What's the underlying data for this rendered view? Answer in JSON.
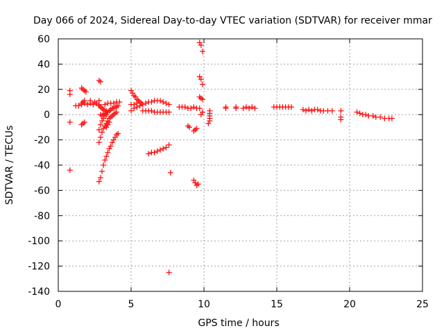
{
  "chart_data": {
    "type": "scatter",
    "title": "Day 066 of 2024, Sidereal Day-to-day VTEC variation (SDTVAR) for receiver mmar",
    "xlabel": "GPS time / hours",
    "ylabel": "SDTVAR / TECUs",
    "xlim": [
      0,
      25
    ],
    "ylim": [
      -140,
      60
    ],
    "xticks": [
      "0",
      "5",
      "10",
      "15",
      "20",
      "25"
    ],
    "xtick_values": [
      0,
      5,
      10,
      15,
      20,
      25
    ],
    "yticks": [
      "60",
      "40",
      "20",
      "0",
      "-20",
      "-40",
      "-60",
      "-80",
      "-100",
      "-120",
      "-140"
    ],
    "ytick_values": [
      60,
      40,
      20,
      0,
      -20,
      -40,
      -60,
      -80,
      -100,
      -120,
      -140
    ],
    "grid": true,
    "marker": "+",
    "color": "#ff0000",
    "series": [
      {
        "name": "SDTVAR",
        "points": [
          [
            0.8,
            19
          ],
          [
            0.8,
            16
          ],
          [
            0.8,
            -6
          ],
          [
            0.8,
            -44
          ],
          [
            1.2,
            7
          ],
          [
            1.4,
            7
          ],
          [
            1.6,
            8
          ],
          [
            1.8,
            9
          ],
          [
            2.0,
            8
          ],
          [
            2.2,
            9
          ],
          [
            2.4,
            8
          ],
          [
            2.6,
            9
          ],
          [
            2.8,
            8
          ],
          [
            1.6,
            21
          ],
          [
            1.7,
            20
          ],
          [
            1.8,
            19
          ],
          [
            1.9,
            18
          ],
          [
            1.6,
            9
          ],
          [
            1.7,
            10
          ],
          [
            1.8,
            11
          ],
          [
            1.6,
            -8
          ],
          [
            1.7,
            -7
          ],
          [
            1.8,
            -6
          ],
          [
            2.2,
            11
          ],
          [
            2.5,
            10
          ],
          [
            2.8,
            11
          ],
          [
            2.8,
            27
          ],
          [
            2.9,
            26
          ],
          [
            2.8,
            -53
          ],
          [
            2.9,
            -50
          ],
          [
            3.0,
            -45
          ],
          [
            3.1,
            -40
          ],
          [
            3.2,
            -36
          ],
          [
            3.3,
            -33
          ],
          [
            3.4,
            -30
          ],
          [
            3.5,
            -27
          ],
          [
            3.6,
            -25
          ],
          [
            3.7,
            -22
          ],
          [
            3.8,
            -20
          ],
          [
            3.9,
            -18
          ],
          [
            4.0,
            -16
          ],
          [
            4.1,
            -15
          ],
          [
            2.8,
            -22
          ],
          [
            2.9,
            -18
          ],
          [
            3.0,
            -14
          ],
          [
            3.1,
            -11
          ],
          [
            3.2,
            -9
          ],
          [
            3.3,
            -7
          ],
          [
            3.4,
            -5
          ],
          [
            3.5,
            -3
          ],
          [
            3.6,
            -2
          ],
          [
            3.7,
            -1
          ],
          [
            3.8,
            0
          ],
          [
            3.9,
            1
          ],
          [
            4.0,
            2
          ],
          [
            2.8,
            -12
          ],
          [
            2.9,
            -8
          ],
          [
            3.0,
            -5
          ],
          [
            3.1,
            -3
          ],
          [
            3.2,
            -1
          ],
          [
            3.3,
            0
          ],
          [
            3.4,
            2
          ],
          [
            3.5,
            3
          ],
          [
            3.6,
            4
          ],
          [
            3.7,
            5
          ],
          [
            3.8,
            5
          ],
          [
            3.9,
            6
          ],
          [
            4.0,
            6
          ],
          [
            4.1,
            7
          ],
          [
            2.9,
            0
          ],
          [
            3.0,
            -1
          ],
          [
            3.1,
            0
          ],
          [
            3.2,
            1
          ],
          [
            2.8,
            7
          ],
          [
            2.9,
            6
          ],
          [
            3.0,
            5
          ],
          [
            3.1,
            4
          ],
          [
            3.2,
            3
          ],
          [
            3.3,
            3
          ],
          [
            3.4,
            2
          ],
          [
            3.3,
            -10
          ],
          [
            3.4,
            -8
          ],
          [
            3.5,
            -6
          ],
          [
            3.2,
            8
          ],
          [
            3.4,
            9
          ],
          [
            3.6,
            9
          ],
          [
            3.8,
            9
          ],
          [
            4.0,
            10
          ],
          [
            4.2,
            10
          ],
          [
            5.0,
            3
          ],
          [
            5.2,
            5
          ],
          [
            5.4,
            6
          ],
          [
            5.6,
            7
          ],
          [
            5.8,
            8
          ],
          [
            6.0,
            9
          ],
          [
            6.2,
            10
          ],
          [
            6.4,
            10
          ],
          [
            6.6,
            11
          ],
          [
            6.8,
            11
          ],
          [
            7.0,
            11
          ],
          [
            7.2,
            10
          ],
          [
            7.4,
            9
          ],
          [
            7.6,
            8
          ],
          [
            5.0,
            19
          ],
          [
            5.1,
            17
          ],
          [
            5.2,
            15
          ],
          [
            5.3,
            14
          ],
          [
            5.4,
            12
          ],
          [
            5.5,
            11
          ],
          [
            5.6,
            10
          ],
          [
            5.7,
            9
          ],
          [
            5.0,
            8
          ],
          [
            5.2,
            8
          ],
          [
            5.4,
            9
          ],
          [
            5.8,
            3
          ],
          [
            6.0,
            3
          ],
          [
            6.2,
            3
          ],
          [
            6.4,
            3
          ],
          [
            6.6,
            2
          ],
          [
            6.8,
            2
          ],
          [
            7.0,
            2
          ],
          [
            7.2,
            2
          ],
          [
            7.4,
            2
          ],
          [
            7.6,
            2
          ],
          [
            6.2,
            -31
          ],
          [
            6.4,
            -30
          ],
          [
            6.6,
            -30
          ],
          [
            6.8,
            -29
          ],
          [
            7.0,
            -28
          ],
          [
            7.2,
            -27
          ],
          [
            7.4,
            -26
          ],
          [
            7.6,
            -24
          ],
          [
            7.7,
            -46
          ],
          [
            7.6,
            -125
          ],
          [
            8.3,
            6
          ],
          [
            8.5,
            6
          ],
          [
            8.7,
            6
          ],
          [
            8.9,
            5
          ],
          [
            9.1,
            5
          ],
          [
            9.3,
            6
          ],
          [
            9.5,
            5
          ],
          [
            9.7,
            5
          ],
          [
            8.9,
            -9
          ],
          [
            9.0,
            -10
          ],
          [
            9.3,
            -13
          ],
          [
            9.4,
            -12
          ],
          [
            9.5,
            -11
          ],
          [
            9.3,
            -52
          ],
          [
            9.4,
            -54
          ],
          [
            9.5,
            -56
          ],
          [
            9.6,
            -55
          ],
          [
            9.7,
            57
          ],
          [
            9.8,
            55
          ],
          [
            9.9,
            50
          ],
          [
            9.7,
            30
          ],
          [
            9.8,
            28
          ],
          [
            9.9,
            24
          ],
          [
            9.7,
            14
          ],
          [
            9.8,
            13
          ],
          [
            9.9,
            12
          ],
          [
            9.8,
            0
          ],
          [
            9.9,
            2
          ],
          [
            10.4,
            3
          ],
          [
            10.4,
            1
          ],
          [
            10.4,
            -1
          ],
          [
            10.4,
            -3
          ],
          [
            10.4,
            -5
          ],
          [
            10.3,
            -7
          ],
          [
            11.5,
            6
          ],
          [
            11.5,
            5
          ],
          [
            12.2,
            6
          ],
          [
            12.2,
            5
          ],
          [
            12.7,
            5
          ],
          [
            12.9,
            6
          ],
          [
            13.1,
            5
          ],
          [
            13.3,
            6
          ],
          [
            13.5,
            5
          ],
          [
            14.8,
            6
          ],
          [
            15.0,
            6
          ],
          [
            15.2,
            6
          ],
          [
            15.4,
            6
          ],
          [
            15.6,
            6
          ],
          [
            15.8,
            6
          ],
          [
            16.0,
            6
          ],
          [
            16.8,
            4
          ],
          [
            17.0,
            3
          ],
          [
            17.2,
            4
          ],
          [
            17.4,
            3
          ],
          [
            17.6,
            4
          ],
          [
            17.8,
            4
          ],
          [
            18.0,
            3
          ],
          [
            18.2,
            3
          ],
          [
            18.5,
            3
          ],
          [
            18.8,
            3
          ],
          [
            19.4,
            3
          ],
          [
            19.4,
            -2
          ],
          [
            19.4,
            -4
          ],
          [
            20.5,
            2
          ],
          [
            20.7,
            1
          ],
          [
            20.9,
            0
          ],
          [
            21.1,
            0
          ],
          [
            21.3,
            -1
          ],
          [
            21.6,
            -1
          ],
          [
            21.8,
            -2
          ],
          [
            22.1,
            -2
          ],
          [
            22.4,
            -3
          ],
          [
            22.7,
            -3
          ],
          [
            22.9,
            -3
          ]
        ]
      }
    ]
  }
}
